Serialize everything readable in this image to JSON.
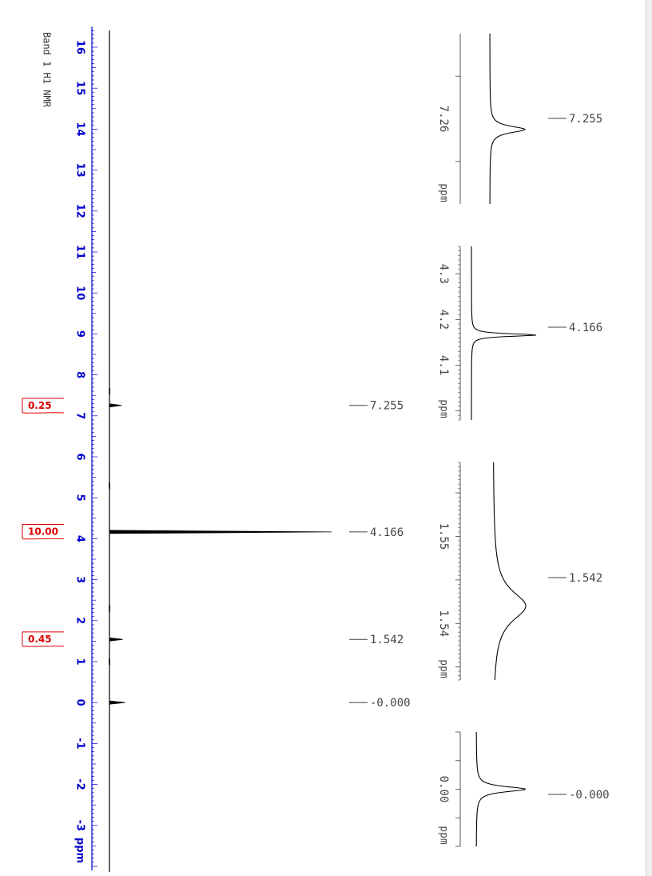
{
  "chart_data": {
    "type": "line",
    "title": "Band 1 H1 NMR",
    "orientation": "rotated-90",
    "main": {
      "axis": {
        "unit_label": "ppm",
        "range": [
          -4,
          16.5
        ],
        "major_ticks": [
          "16",
          "15",
          "14",
          "13",
          "12",
          "11",
          "10",
          "9",
          "8",
          "7",
          "6",
          "5",
          "4",
          "3",
          "2",
          "1",
          "0",
          "-1",
          "-2",
          "-3"
        ]
      },
      "peaks": [
        {
          "ppm": 7.255,
          "rel_intensity": 0.055,
          "label": "7.255"
        },
        {
          "ppm": 4.166,
          "rel_intensity": 1.0,
          "label": "4.166"
        },
        {
          "ppm": 1.542,
          "rel_intensity": 0.06,
          "label": "1.542"
        },
        {
          "ppm": -0.0,
          "rel_intensity": 0.07,
          "label": "-0.000"
        }
      ],
      "integrals": [
        {
          "ppm_from": 7.45,
          "ppm_to": 7.05,
          "value": "0.25"
        },
        {
          "ppm_from": 4.45,
          "ppm_to": 3.9,
          "value": "10.00"
        },
        {
          "ppm_from": 1.75,
          "ppm_to": 1.35,
          "value": "0.45"
        }
      ]
    },
    "insets": [
      {
        "range": [
          7.22,
          7.3
        ],
        "tick_labels": [
          {
            "v": 7.26,
            "t": "7.26"
          }
        ],
        "major_step": 0.04,
        "minor_step": null,
        "unit_label": "ppm",
        "peak": {
          "ppm": 7.255,
          "label": "7.255"
        }
      },
      {
        "range": [
          3.98,
          4.36
        ],
        "tick_labels": [
          {
            "v": 4.3,
            "t": "4.3"
          },
          {
            "v": 4.2,
            "t": "4.2"
          },
          {
            "v": 4.1,
            "t": "4.1"
          }
        ],
        "major_step": 0.1,
        "minor_step": 0.01,
        "unit_label": "ppm",
        "peak": {
          "ppm": 4.166,
          "label": "4.166"
        }
      },
      {
        "range": [
          1.5335,
          1.5585
        ],
        "tick_labels": [
          {
            "v": 1.55,
            "t": "1.55"
          },
          {
            "v": 1.54,
            "t": "1.54"
          }
        ],
        "major_step": 0.005,
        "minor_step": 0.0005,
        "unit_label": "ppm",
        "peak": {
          "ppm": 1.542,
          "label": "1.542"
        }
      },
      {
        "range": [
          -0.04,
          0.04
        ],
        "tick_labels": [
          {
            "v": 0.0,
            "t": "0.00"
          }
        ],
        "major_step": 0.02,
        "minor_step": null,
        "unit_label": "ppm",
        "peak": {
          "ppm": -0.0,
          "label": "-0.000"
        }
      }
    ]
  },
  "colors": {
    "axis": "#0000cc",
    "integral": "#dd0000",
    "trace": "#000000",
    "label": "#444444"
  }
}
